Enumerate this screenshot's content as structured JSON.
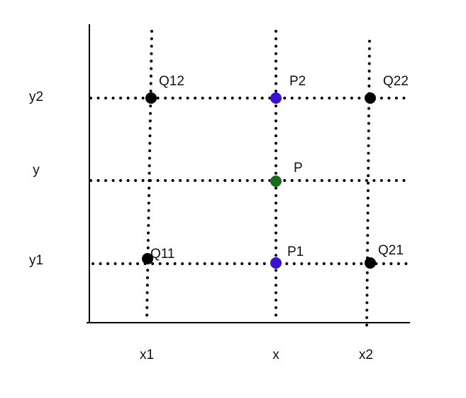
{
  "axis_labels": {
    "x_ticks": [
      "x1",
      "x",
      "x2"
    ],
    "y_ticks": [
      "y2",
      "y",
      "y1"
    ]
  },
  "points": [
    {
      "label": "Q12",
      "color": "#000000"
    },
    {
      "label": "P2",
      "color": "#3a0fd0"
    },
    {
      "label": "Q22",
      "color": "#000000"
    },
    {
      "label": "P",
      "color": "#1a6b1a"
    },
    {
      "label": "Q11",
      "color": "#000000"
    },
    {
      "label": "P1",
      "color": "#3a0fd0"
    },
    {
      "label": "Q21",
      "color": "#000000"
    }
  ]
}
